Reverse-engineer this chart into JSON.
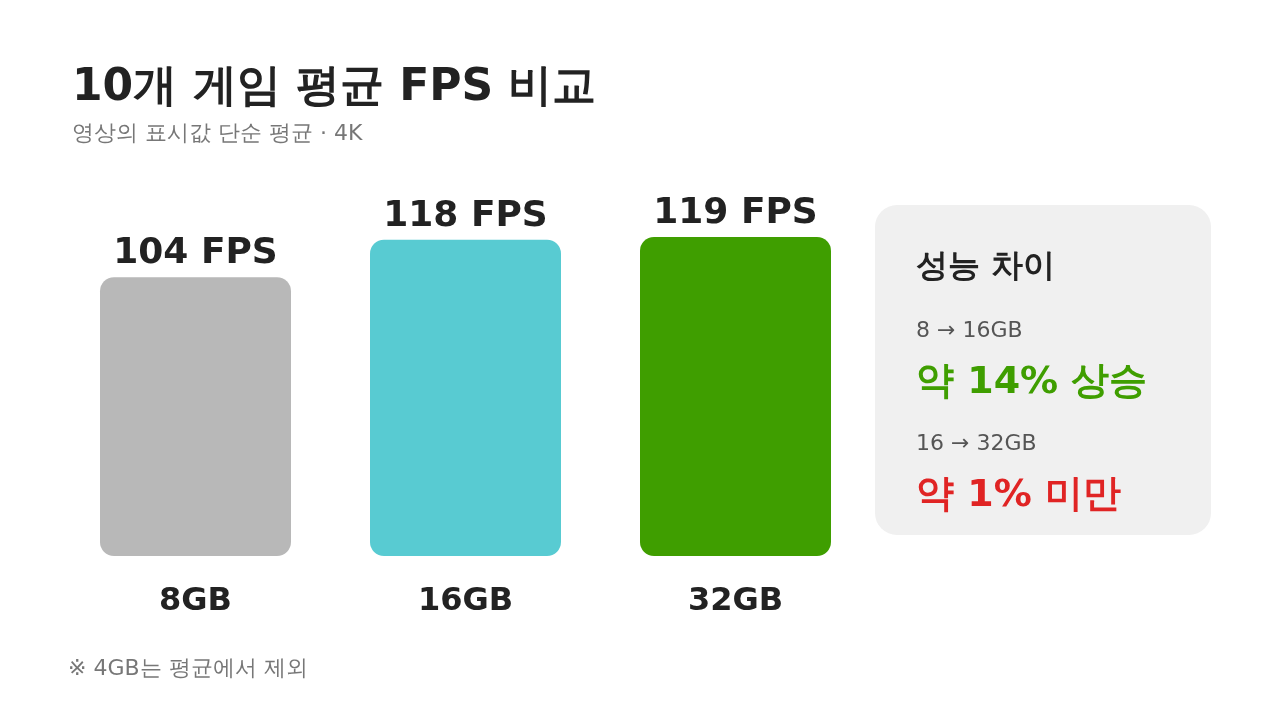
{
  "chart_data": [
    {
      "type": "bar",
      "title": "10개 게임 평균 FPS 비교",
      "subtitle": "영상의 표시값 단순 평균 · 4K",
      "categories": [
        "8GB",
        "16GB",
        "32GB"
      ],
      "values": [
        104,
        118,
        119
      ],
      "colors": [
        "#b8b8b8",
        "#58cbd2",
        "#3f9e00"
      ],
      "value_labels": [
        "104 FPS",
        "118 FPS",
        "119 FPS"
      ],
      "annotations": [
        "※ 4GB는 평균에서 제외"
      ]
    },
    {
      "type": "other",
      "title": "성능 차이",
      "annotations": [
        "8 → 16GB",
        "약 14% 상승",
        "16 → 32GB",
        "약 1% 미만"
      ],
      "colors": [
        "#3f9e00",
        "#e02424"
      ]
    }
  ]
}
